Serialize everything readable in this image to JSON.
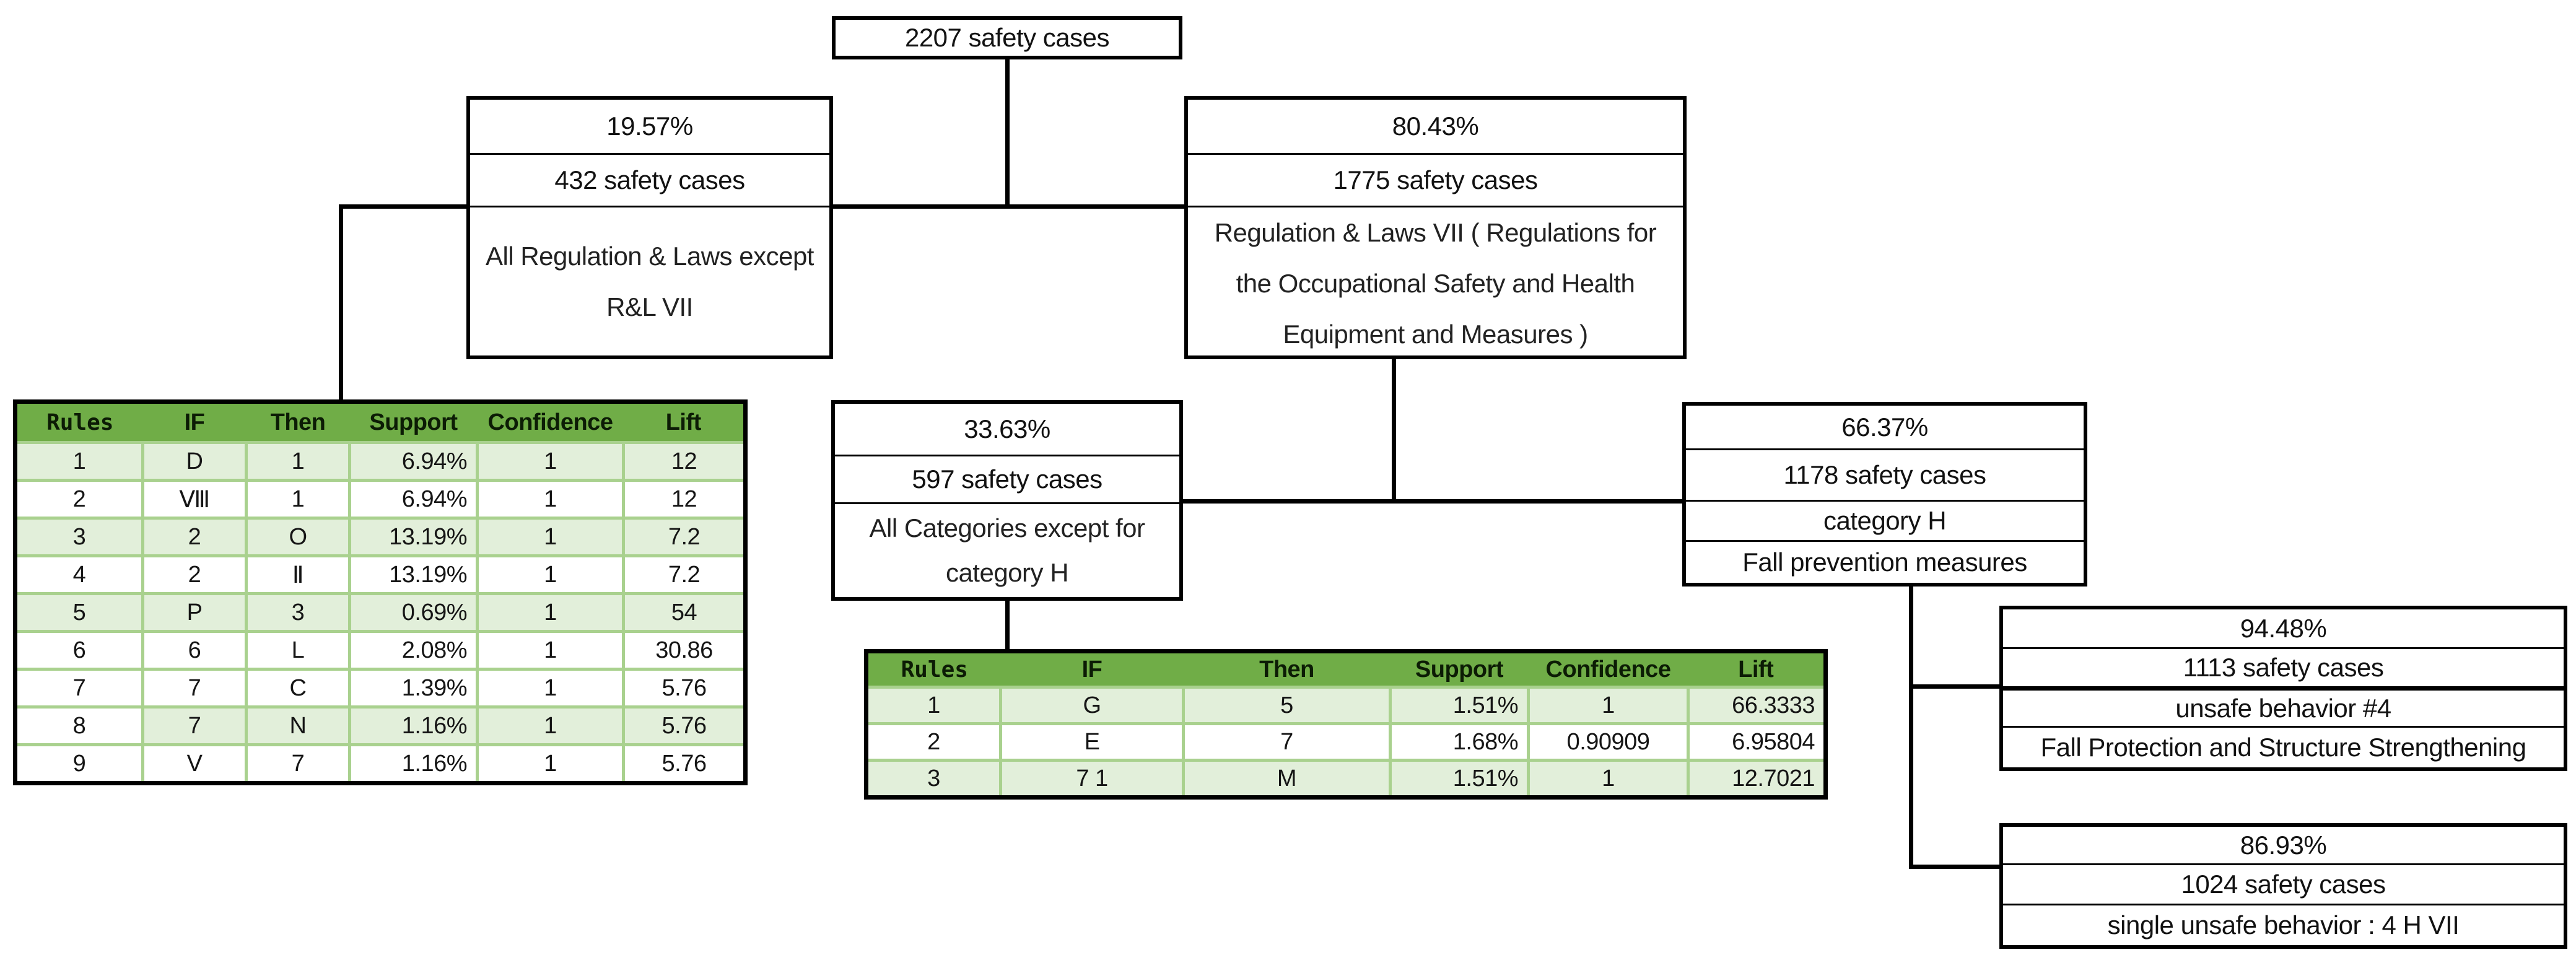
{
  "colors": {
    "header_green": "#70AD47",
    "row_light_green": "#E2EFDA",
    "cell_border_green": "#A9D18E",
    "connector_black": "#000000"
  },
  "diagram": {
    "root": {
      "cases": "2207 safety cases"
    },
    "left_branch": {
      "percent": "19.57%",
      "cases": "432 safety cases",
      "description_lines": [
        "All Regulation & Laws except",
        "R&L VII"
      ]
    },
    "right_branch": {
      "percent": "80.43%",
      "cases": "1775 safety cases",
      "description_lines": [
        "Regulation & Laws VII ( Regulations for",
        "the Occupational Safety and Health",
        "Equipment and Measures )"
      ]
    },
    "other_categories_branch": {
      "percent": "33.63%",
      "cases": "597 safety cases",
      "description_lines": [
        "All Categories except for",
        "category H"
      ]
    },
    "category_h_branch": {
      "percent": "66.37%",
      "cases": "1178 safety cases",
      "category": "category H",
      "measures": "Fall prevention measures"
    },
    "unsafe_behavior_branch": {
      "percent": "94.48%",
      "cases": "1113 safety cases",
      "behavior": "unsafe behavior #4",
      "measures": "Fall Protection and Structure Strengthening"
    },
    "single_behavior_branch": {
      "percent": "86.93%",
      "cases": "1024 safety cases",
      "behavior": "single unsafe behavior : 4 H VII"
    }
  },
  "left_rules_table": {
    "columns": [
      "Rules",
      "IF",
      "Then",
      "Support",
      "Confidence",
      "Lift"
    ],
    "rows": [
      [
        "1",
        "D",
        "1",
        "6.94%",
        "1",
        "12"
      ],
      [
        "2",
        "Ⅷ",
        "1",
        "6.94%",
        "1",
        "12"
      ],
      [
        "3",
        "2",
        "O",
        "13.19%",
        "1",
        "7.2"
      ],
      [
        "4",
        "2",
        "Ⅱ",
        "13.19%",
        "1",
        "7.2"
      ],
      [
        "5",
        "P",
        "3",
        "0.69%",
        "1",
        "54"
      ],
      [
        "6",
        "6",
        "L",
        "2.08%",
        "1",
        "30.86"
      ],
      [
        "7",
        "7",
        "C",
        "1.39%",
        "1",
        "5.76"
      ],
      [
        "8",
        "7",
        "N",
        "1.16%",
        "1",
        "5.76"
      ],
      [
        "9",
        "V",
        "7",
        "1.16%",
        "1",
        "5.76"
      ]
    ]
  },
  "middle_rules_table": {
    "columns": [
      "Rules",
      "IF",
      "Then",
      "Support",
      "Confidence",
      "Lift"
    ],
    "rows": [
      [
        "1",
        "G",
        "5",
        "1.51%",
        "1",
        "66.3333"
      ],
      [
        "2",
        "E",
        "7",
        "1.68%",
        "0.90909",
        "6.95804"
      ],
      [
        "3",
        "7 1",
        "M",
        "1.51%",
        "1",
        "12.7021"
      ]
    ]
  }
}
